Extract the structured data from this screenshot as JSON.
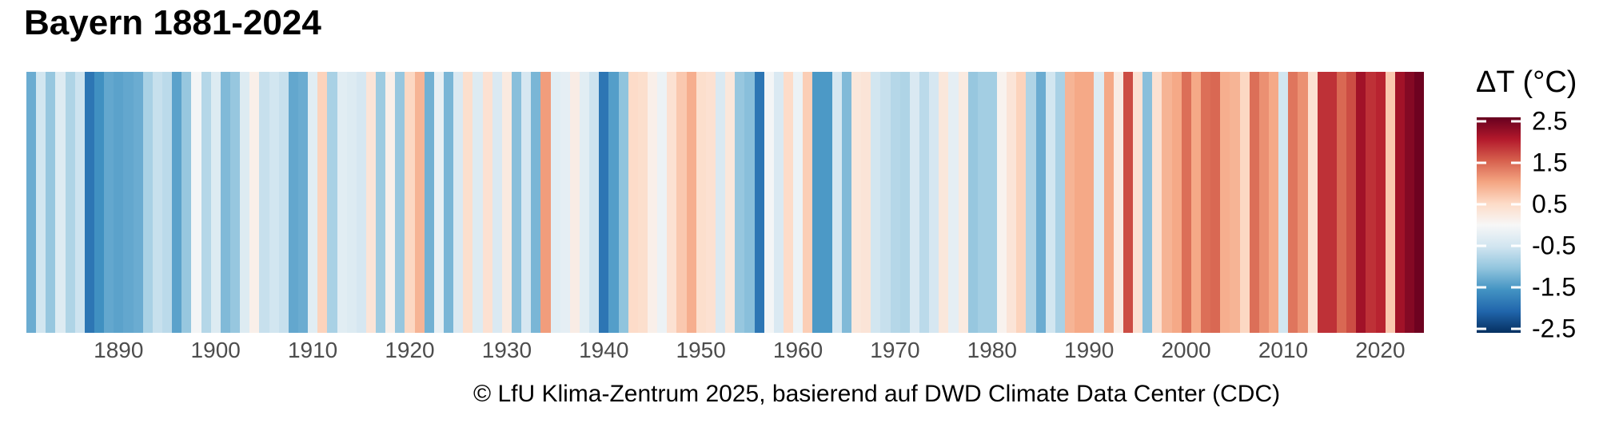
{
  "title": "Bayern 1881-2024",
  "caption": "© LfU Klima-Zentrum 2025, basierend auf DWD Climate Data Center (CDC)",
  "x_axis": {
    "tick_labels": [
      "1890",
      "1900",
      "1910",
      "1920",
      "1930",
      "1940",
      "1950",
      "1960",
      "1970",
      "1980",
      "1990",
      "2000",
      "2010",
      "2020"
    ],
    "tick_years": [
      1890,
      1900,
      1910,
      1920,
      1930,
      1940,
      1950,
      1960,
      1970,
      1980,
      1990,
      2000,
      2010,
      2020
    ]
  },
  "legend": {
    "title": "ΔT (°C)",
    "tick_labels": [
      "2.5",
      "1.5",
      "0.5",
      "-0.5",
      "-1.5",
      "-2.5"
    ],
    "tick_values": [
      2.5,
      1.5,
      0.5,
      -0.5,
      -1.5,
      -2.5
    ]
  },
  "colors": {
    "background": "#ffffff",
    "title_text": "#000000",
    "axis_label_text": "#4d4d4d",
    "caption_text": "#000000",
    "palette": [
      {
        "value": 2.6,
        "color": "#67001f"
      },
      {
        "value": 2.08,
        "color": "#b2182b"
      },
      {
        "value": 1.56,
        "color": "#d6604d"
      },
      {
        "value": 1.04,
        "color": "#f4a582"
      },
      {
        "value": 0.52,
        "color": "#fddbc7"
      },
      {
        "value": 0.0,
        "color": "#f7f7f7"
      },
      {
        "value": -0.52,
        "color": "#d1e5f0"
      },
      {
        "value": -1.04,
        "color": "#92c5de"
      },
      {
        "value": -1.56,
        "color": "#4393c3"
      },
      {
        "value": -2.08,
        "color": "#2166ac"
      },
      {
        "value": -2.6,
        "color": "#053061"
      }
    ]
  },
  "chart_data": {
    "type": "heatmap",
    "subtype": "warming-stripes",
    "title": "Bayern 1881-2024",
    "colorbar_label": "ΔT (°C)",
    "year_start": 1881,
    "year_end": 2024,
    "value_domain": [
      -2.6,
      2.6
    ],
    "colorbar_tick_values": [
      2.5,
      1.5,
      0.5,
      -0.5,
      -1.5,
      -2.5
    ],
    "x_tick_years": [
      1890,
      1900,
      1910,
      1920,
      1930,
      1940,
      1950,
      1960,
      1970,
      1980,
      1990,
      2000,
      2010,
      2020
    ],
    "values": [
      -1.3,
      -0.5,
      -1.0,
      -0.35,
      -0.8,
      -0.55,
      -1.9,
      -1.6,
      -1.35,
      -1.4,
      -1.35,
      -1.3,
      -0.85,
      -0.6,
      -0.7,
      -1.4,
      -1.0,
      -0.05,
      -0.75,
      -0.35,
      -1.15,
      -1.0,
      -0.35,
      0.15,
      -0.6,
      -0.5,
      -0.6,
      -1.35,
      -1.3,
      -0.3,
      0.6,
      -0.85,
      -0.3,
      -0.35,
      -0.45,
      0.35,
      -0.95,
      0.15,
      -1.0,
      0.55,
      0.9,
      -1.25,
      -0.2,
      -1.2,
      -0.4,
      0.45,
      -0.35,
      0.4,
      -0.4,
      0.25,
      -1.1,
      -0.45,
      -1.2,
      1.1,
      -0.3,
      -0.25,
      0.2,
      -0.3,
      -0.55,
      -1.9,
      -1.45,
      -1.05,
      0.5,
      0.45,
      0.15,
      -0.15,
      0.4,
      0.7,
      0.95,
      0.45,
      0.4,
      -0.4,
      0.3,
      -1.0,
      -1.1,
      -1.9,
      -0.05,
      -0.4,
      0.5,
      -0.15,
      0.65,
      -1.5,
      -1.5,
      -0.45,
      -1.15,
      0.3,
      0.35,
      -0.5,
      -0.6,
      -0.75,
      -0.8,
      -0.4,
      -0.7,
      -0.45,
      0.3,
      -0.25,
      0.25,
      -1.0,
      -0.9,
      -0.9,
      0.1,
      0.35,
      0.6,
      -0.8,
      -1.3,
      -0.5,
      -0.85,
      0.9,
      1.0,
      1.0,
      -0.35,
      1.0,
      0.2,
      1.7,
      0.4,
      -1.1,
      0.4,
      0.9,
      1.0,
      1.45,
      1.0,
      1.45,
      1.5,
      0.95,
      0.9,
      0.55,
      1.45,
      1.2,
      1.0,
      -0.5,
      1.4,
      1.2,
      0.4,
      1.9,
      1.9,
      1.5,
      1.7,
      2.2,
      1.9,
      2.0,
      0.7,
      2.2,
      2.4,
      2.55
    ]
  }
}
